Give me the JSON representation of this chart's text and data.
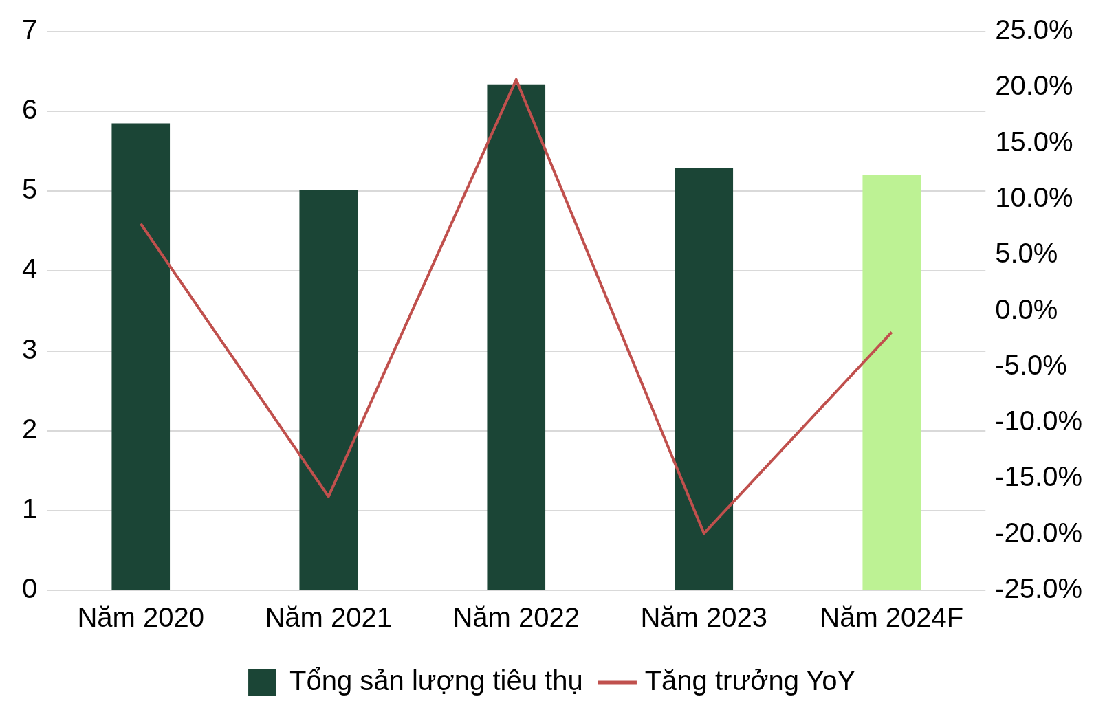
{
  "chart_data": {
    "type": "bar",
    "categories": [
      "Năm 2020",
      "Năm 2021",
      "Năm 2022",
      "Năm 2023",
      "Năm 2024F"
    ],
    "series": [
      {
        "name": "Tổng sản lượng tiêu thụ",
        "color": "#1b4536",
        "colors": [
          "#1b4536",
          "#1b4536",
          "#1b4536",
          "#1b4536",
          "#bdf294"
        ],
        "values": [
          5.85,
          5.02,
          6.34,
          5.29,
          5.2
        ]
      },
      {
        "name": "Tăng trưởng YoY",
        "type": "line",
        "axis": "y2",
        "color": "#c0504d",
        "values": [
          7.8,
          -16.6,
          20.7,
          -19.9,
          -1.9
        ]
      }
    ],
    "ylim": [
      0,
      7
    ],
    "yticks": [
      0,
      1,
      2,
      3,
      4,
      5,
      6,
      7
    ],
    "y2lim": [
      -25,
      25
    ],
    "y2ticks": [
      {
        "value": -25,
        "label": "-25.0%"
      },
      {
        "value": -20,
        "label": "-20.0%"
      },
      {
        "value": -15,
        "label": "-15.0%"
      },
      {
        "value": -10,
        "label": "-10.0%"
      },
      {
        "value": -5,
        "label": "-5.0%"
      },
      {
        "value": 0,
        "label": "0.0%"
      },
      {
        "value": 5,
        "label": "5.0%"
      },
      {
        "value": 10,
        "label": "10.0%"
      },
      {
        "value": 15,
        "label": "15.0%"
      },
      {
        "value": 20,
        "label": "20.0%"
      },
      {
        "value": 25,
        "label": "25.0%"
      }
    ],
    "grid": "y",
    "legend": "bottom",
    "marker": "none",
    "line_style": "solid"
  }
}
